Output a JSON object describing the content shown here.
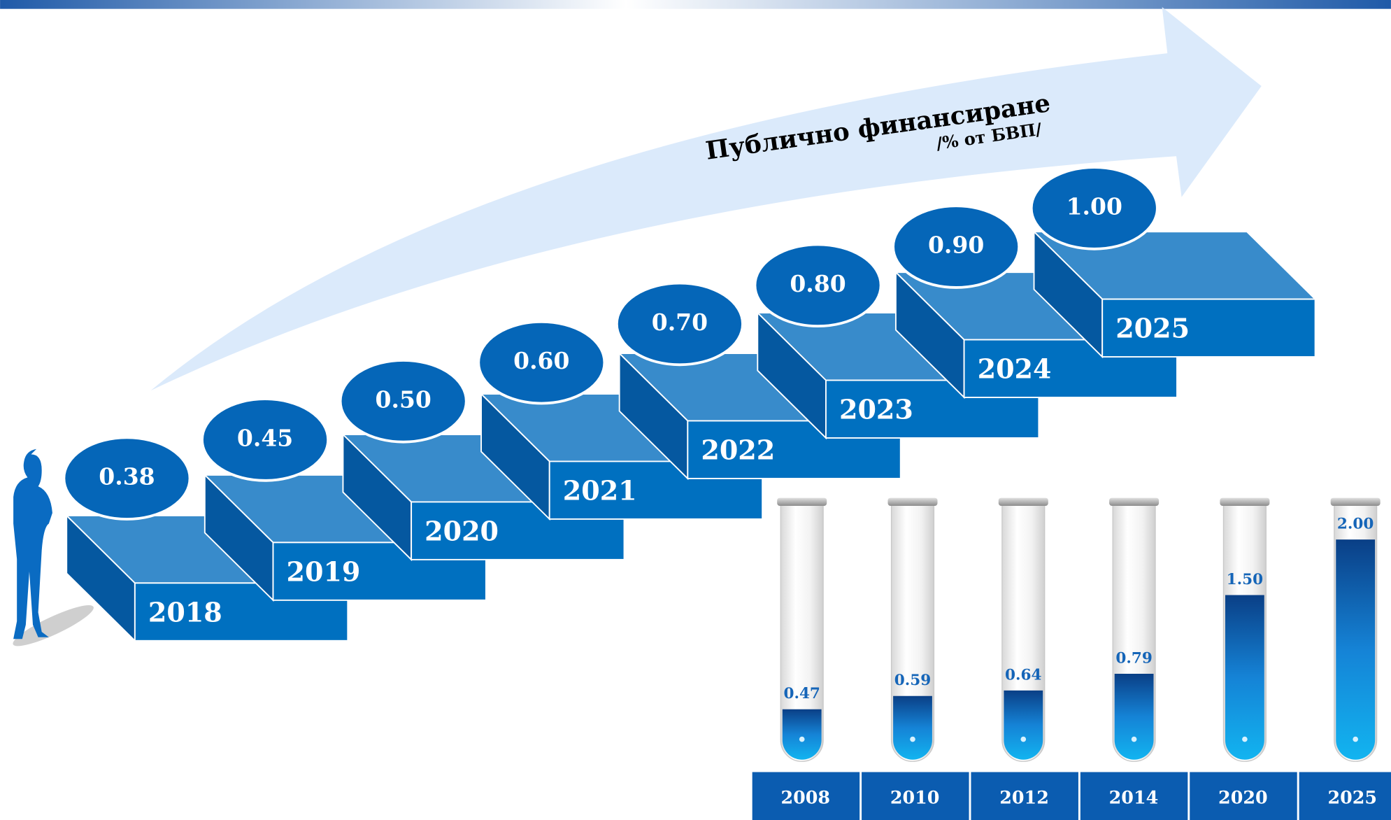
{
  "chart_data": [
    {
      "type": "steps",
      "title": "Публично финансиране",
      "subtitle": "/% от БВП/",
      "categories": [
        "2018",
        "2019",
        "2020",
        "2021",
        "2022",
        "2023",
        "2024",
        "2025"
      ],
      "values": [
        0.38,
        0.45,
        0.5,
        0.6,
        0.7,
        0.8,
        0.9,
        1.0
      ],
      "value_labels": [
        "0.38",
        "0.45",
        "0.50",
        "0.60",
        "0.70",
        "0.80",
        "0.90",
        "1.00"
      ],
      "color": "#0070c0"
    },
    {
      "type": "tubes",
      "categories": [
        "2008",
        "2010",
        "2012",
        "2014",
        "2020",
        "2025"
      ],
      "values": [
        0.47,
        0.59,
        0.64,
        0.79,
        1.5,
        2.0
      ],
      "value_labels": [
        "0.47",
        "0.59",
        "0.64",
        "0.79",
        "1.50",
        "2.00"
      ],
      "color": "#1a8fe0"
    }
  ]
}
